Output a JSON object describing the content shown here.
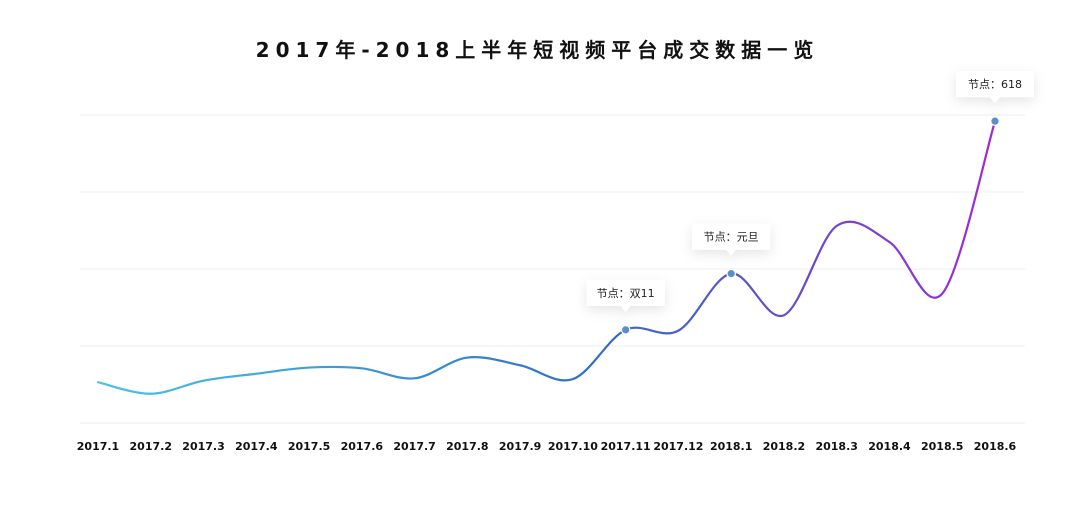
{
  "chart_data": {
    "type": "line",
    "title": "2017年-2018上半年短视频平台成交数据一览",
    "xlabel": "",
    "ylabel": "",
    "categories": [
      "2017.1",
      "2017.2",
      "2017.3",
      "2017.4",
      "2017.5",
      "2017.6",
      "2017.7",
      "2017.8",
      "2017.9",
      "2017.10",
      "2017.11",
      "2017.12",
      "2018.1",
      "2018.2",
      "2018.3",
      "2018.4",
      "2018.5",
      "2018.6"
    ],
    "x": [
      1,
      2,
      3,
      4,
      5,
      6,
      7,
      8,
      9,
      10,
      11,
      12,
      13,
      14,
      15,
      16,
      17,
      18
    ],
    "series": [
      {
        "values": [
          0.53,
          0.38,
          0.55,
          0.64,
          0.72,
          0.71,
          0.58,
          0.85,
          0.75,
          0.57,
          1.21,
          1.2,
          1.94,
          1.4,
          2.56,
          2.35,
          1.68,
          3.92
        ]
      }
    ],
    "annotations": [
      {
        "index": 10,
        "label": "节点：双11"
      },
      {
        "index": 12,
        "label": "节点：元旦"
      },
      {
        "index": 17,
        "label": "节点：618"
      }
    ],
    "ylim": [
      0,
      4
    ],
    "grid": true,
    "legend": "none",
    "colors": {
      "gradient_start": "#4cc3e8",
      "gradient_mid": "#2f6fc4",
      "gradient_end": "#a028d6",
      "marker": "#5b8fc7",
      "grid": "#ececec"
    }
  }
}
